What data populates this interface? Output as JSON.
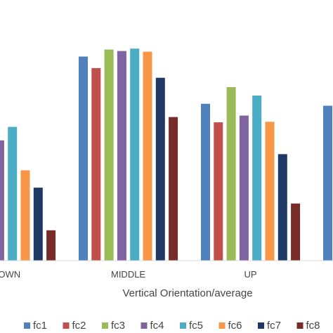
{
  "chart_data": {
    "type": "bar",
    "xlabel": "Vertical Orientation/average",
    "ylabel": "",
    "categories": [
      "DOWN",
      "MIDDLE",
      "UP",
      ""
    ],
    "grid": false,
    "legend_position": "bottom",
    "ylim": [
      0,
      100
    ],
    "series": [
      {
        "name": "fc1",
        "color": "#4F81BD",
        "values": [
          null,
          84.7,
          65.1,
          64.3
        ]
      },
      {
        "name": "fc2",
        "color": "#C0504D",
        "values": [
          null,
          79.9,
          57.4,
          null
        ]
      },
      {
        "name": "fc3",
        "color": "#9BBB59",
        "values": [
          null,
          87.6,
          72.0,
          null
        ]
      },
      {
        "name": "fc4",
        "color": "#8064A2",
        "values": [
          49.9,
          87.0,
          60.2,
          null
        ]
      },
      {
        "name": "fc5",
        "color": "#4BACC6",
        "values": [
          55.5,
          88.0,
          68.5,
          null
        ]
      },
      {
        "name": "fc6",
        "color": "#F79646",
        "values": [
          37.5,
          86.7,
          57.6,
          null
        ]
      },
      {
        "name": "fc7",
        "color": "#1F3864",
        "values": [
          30.3,
          75.9,
          44.2,
          null
        ]
      },
      {
        "name": "fc8",
        "color": "#772C2A",
        "values": [
          12.6,
          59.6,
          23.7,
          null
        ]
      }
    ]
  }
}
